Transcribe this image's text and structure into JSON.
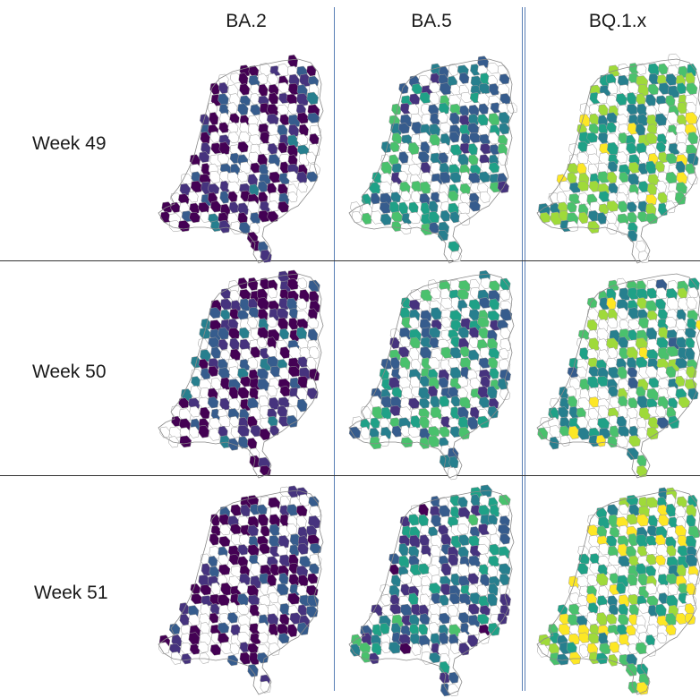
{
  "columns": [
    "BA.2",
    "BA.5",
    "BQ.1.x"
  ],
  "rows": [
    "Week 49",
    "Week 50",
    "Week 51"
  ],
  "palette": [
    "#440154",
    "#46337e",
    "#365c8d",
    "#277f8e",
    "#1fa187",
    "#4ac16d",
    "#9fda3a",
    "#fde725"
  ],
  "cells": [
    [
      0.12,
      0.45,
      0.65
    ],
    [
      0.15,
      0.45,
      0.62
    ],
    [
      0.1,
      0.38,
      0.72
    ]
  ]
}
